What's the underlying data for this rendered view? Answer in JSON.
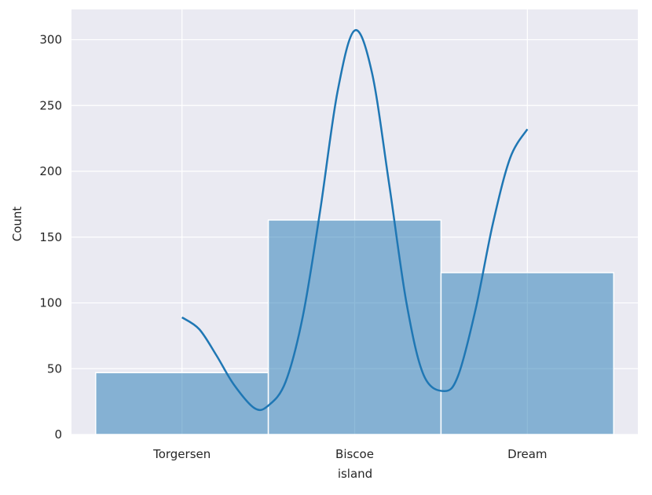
{
  "chart_data": {
    "type": "bar",
    "x_label": "island",
    "y_label": "Count",
    "categories": [
      "Torgersen",
      "Biscoe",
      "Dream"
    ],
    "values": [
      47,
      163,
      123
    ],
    "color": "#1f77b4",
    "bar_alpha": 0.5,
    "xlim": [
      -0.64,
      2.64
    ],
    "ylim": [
      0,
      323
    ],
    "yticks": [
      0,
      50,
      100,
      150,
      200,
      250,
      300
    ],
    "grid": true,
    "kde": {
      "color": "#1f77b4",
      "x": [
        0,
        0.1,
        0.2,
        0.3,
        0.42,
        0.5,
        0.6,
        0.7,
        0.8,
        0.9,
        1.0,
        1.1,
        1.2,
        1.3,
        1.4,
        1.52,
        1.6,
        1.7,
        1.8,
        1.9,
        2.0
      ],
      "values": [
        89,
        80,
        60,
        38,
        20,
        22,
        40,
        90,
        170,
        260,
        307,
        275,
        190,
        100,
        45,
        33,
        45,
        95,
        160,
        210,
        232
      ]
    }
  }
}
